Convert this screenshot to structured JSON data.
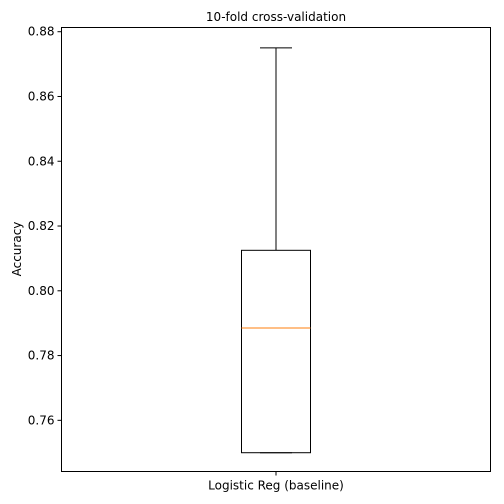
{
  "chart_data": {
    "type": "box",
    "title": "10-fold cross-validation",
    "xlabel": "",
    "ylabel": "Accuracy",
    "categories": [
      "Logistic Reg (baseline)"
    ],
    "boxes": [
      {
        "label": "Logistic Reg (baseline)",
        "whisker_low": 0.75,
        "q1": 0.75,
        "median": 0.7885,
        "q3": 0.8125,
        "whisker_high": 0.875
      }
    ],
    "ylim": [
      0.7442,
      0.8813
    ],
    "yticks": [
      0.76,
      0.78,
      0.8,
      0.82,
      0.84,
      0.86,
      0.88
    ],
    "ytick_labels": [
      "0.76",
      "0.78",
      "0.80",
      "0.82",
      "0.84",
      "0.86",
      "0.88"
    ],
    "grid": false,
    "colors": {
      "box": "#000000",
      "median": "#ff7f0e",
      "axes": "#000000",
      "background": "#ffffff"
    }
  }
}
